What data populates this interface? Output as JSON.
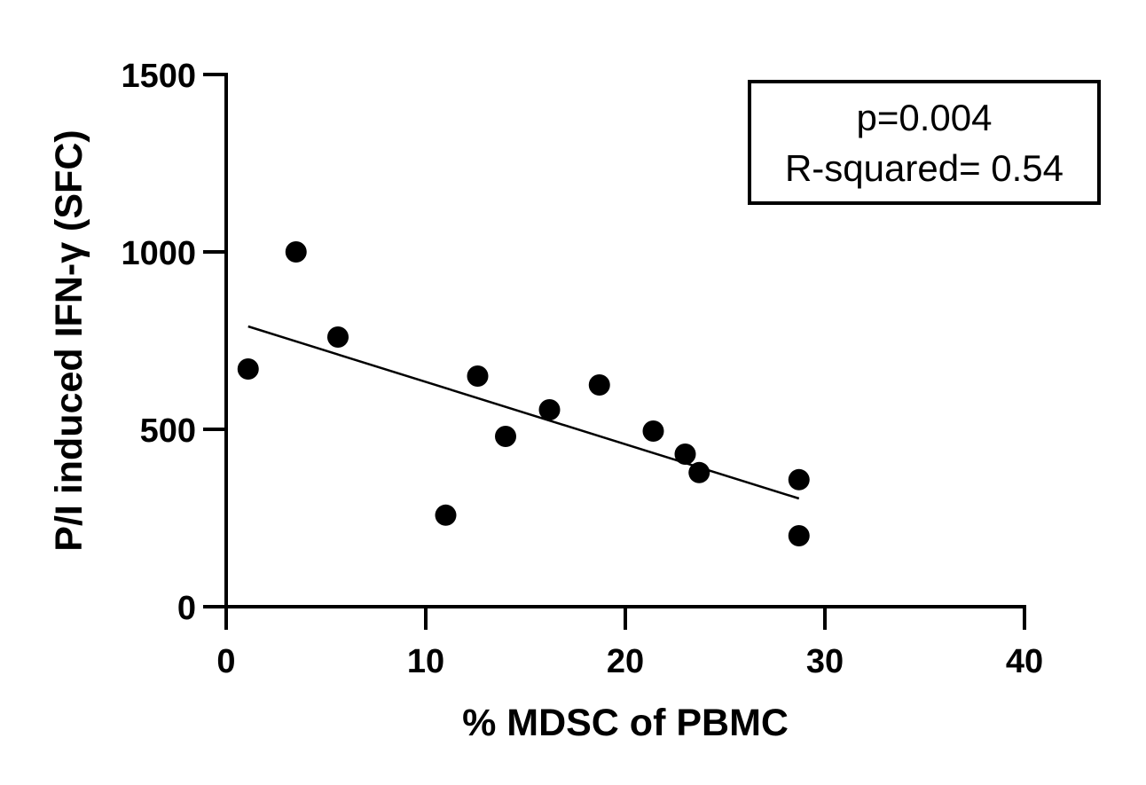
{
  "chart_data": {
    "type": "scatter",
    "xlabel": "% MDSC of  PBMC",
    "ylabel": "P/I  induced IFN-γ (SFC)",
    "xlim": [
      0,
      40
    ],
    "ylim": [
      0,
      1500
    ],
    "xticks": [
      0,
      10,
      20,
      30,
      40
    ],
    "yticks": [
      0,
      500,
      1000,
      1500
    ],
    "grid": false,
    "points": [
      {
        "x": 1.1,
        "y": 670
      },
      {
        "x": 3.5,
        "y": 1000
      },
      {
        "x": 5.6,
        "y": 760
      },
      {
        "x": 11.0,
        "y": 258
      },
      {
        "x": 12.6,
        "y": 650
      },
      {
        "x": 14.0,
        "y": 480
      },
      {
        "x": 16.2,
        "y": 555
      },
      {
        "x": 18.7,
        "y": 625
      },
      {
        "x": 21.4,
        "y": 495
      },
      {
        "x": 23.0,
        "y": 430
      },
      {
        "x": 23.7,
        "y": 378
      },
      {
        "x": 28.7,
        "y": 358
      },
      {
        "x": 28.7,
        "y": 200
      }
    ],
    "fit_line": {
      "x": [
        1.1,
        28.7
      ],
      "y": [
        790,
        305
      ]
    },
    "annotation": {
      "line1": "p=0.004",
      "line2": "R-squared= 0.54",
      "position": "top-right"
    }
  }
}
